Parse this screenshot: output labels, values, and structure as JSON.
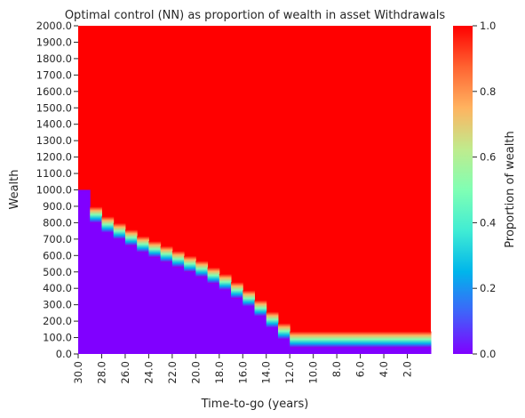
{
  "chart_data": {
    "type": "heatmap",
    "title": "Optimal control (NN) as proportion of wealth in asset Withdrawals",
    "xlabel": "Time-to-go (years)",
    "ylabel": "Wealth",
    "colorbar_label": "Proportion of wealth",
    "colormap": "rainbow",
    "x_tick_labels": [
      "30.0",
      "28.0",
      "26.0",
      "24.0",
      "22.0",
      "20.0",
      "18.0",
      "16.0",
      "14.0",
      "12.0",
      "10.0",
      "8.0",
      "6.0",
      "4.0",
      "2.0"
    ],
    "x_range": [
      30.0,
      0.0
    ],
    "y_tick_labels": [
      "0.0",
      "100.0",
      "200.0",
      "300.0",
      "400.0",
      "500.0",
      "600.0",
      "700.0",
      "800.0",
      "900.0",
      "1000.0",
      "1100.0",
      "1200.0",
      "1300.0",
      "1400.0",
      "1500.0",
      "1600.0",
      "1700.0",
      "1800.0",
      "1900.0",
      "2000.0"
    ],
    "y_range": [
      0.0,
      2000.0
    ],
    "colorbar_ticks": [
      "0.0",
      "0.2",
      "0.4",
      "0.6",
      "0.8",
      "1.0"
    ],
    "colorbar_range": [
      0.0,
      1.0
    ],
    "boundary": {
      "description": "Wealth threshold at each time-to-go below which proportion is 0 (purple) and above which proportion is 1 (red)",
      "time_to_go": [
        30,
        29,
        28,
        27,
        26,
        25,
        24,
        23,
        22,
        21,
        20,
        19,
        18,
        17,
        16,
        15,
        14,
        13,
        12,
        11,
        10,
        9,
        8,
        7,
        6,
        5,
        4,
        3,
        2,
        1
      ],
      "wealth": [
        1000,
        800,
        740,
        700,
        660,
        620,
        590,
        560,
        530,
        500,
        470,
        430,
        390,
        340,
        290,
        230,
        160,
        90,
        40,
        40,
        40,
        40,
        40,
        40,
        40,
        40,
        40,
        40,
        40,
        40
      ]
    },
    "value_below_boundary": 0.0,
    "value_above_boundary": 1.0
  }
}
